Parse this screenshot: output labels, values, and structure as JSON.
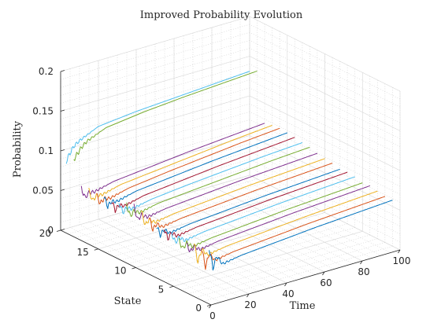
{
  "chart_data": {
    "type": "line3d",
    "title": "Improved Probability Evolution",
    "xlabel": "Time",
    "ylabel": "State",
    "zlabel": "Probability",
    "xlim": [
      0,
      100
    ],
    "ylim": [
      0,
      20
    ],
    "zlim": [
      0,
      0.2
    ],
    "xticks": [
      "0",
      "20",
      "40",
      "60",
      "80",
      "100"
    ],
    "yticks": [
      "0",
      "5",
      "10",
      "15",
      "20"
    ],
    "zticks": [
      "0",
      "0.05",
      "0.1",
      "0.15",
      "0.2"
    ],
    "grid": true,
    "colors": [
      "#0072BD",
      "#D95319",
      "#EDB120",
      "#7E2F8E",
      "#77AC30",
      "#4DBEEE",
      "#A2142F"
    ],
    "series": [
      {
        "state": 1,
        "x": [
          3,
          5,
          7,
          10,
          20,
          40,
          60,
          80,
          100
        ],
        "values": [
          0.065,
          0.038,
          0.052,
          0.04,
          0.044,
          0.048,
          0.052,
          0.055,
          0.058
        ]
      },
      {
        "state": 2,
        "x": [
          3,
          5,
          7,
          10,
          20,
          40,
          60,
          80,
          100
        ],
        "values": [
          0.06,
          0.035,
          0.05,
          0.04,
          0.044,
          0.048,
          0.052,
          0.055,
          0.058
        ]
      },
      {
        "state": 3,
        "x": [
          3,
          5,
          7,
          10,
          20,
          40,
          60,
          80,
          100
        ],
        "values": [
          0.062,
          0.036,
          0.051,
          0.042,
          0.046,
          0.05,
          0.054,
          0.057,
          0.06
        ]
      },
      {
        "state": 4,
        "x": [
          3,
          5,
          7,
          10,
          20,
          40,
          60,
          80,
          100
        ],
        "values": [
          0.055,
          0.045,
          0.05,
          0.044,
          0.048,
          0.052,
          0.056,
          0.059,
          0.062
        ]
      },
      {
        "state": 5,
        "x": [
          3,
          5,
          7,
          10,
          20,
          40,
          60,
          80,
          100
        ],
        "values": [
          0.055,
          0.044,
          0.05,
          0.043,
          0.047,
          0.051,
          0.055,
          0.058,
          0.061
        ]
      },
      {
        "state": 6,
        "x": [
          3,
          5,
          7,
          10,
          20,
          40,
          60,
          80,
          100
        ],
        "values": [
          0.06,
          0.047,
          0.052,
          0.046,
          0.05,
          0.054,
          0.058,
          0.061,
          0.064
        ]
      },
      {
        "state": 7,
        "x": [
          3,
          5,
          7,
          10,
          20,
          40,
          60,
          80,
          100
        ],
        "values": [
          0.062,
          0.047,
          0.053,
          0.047,
          0.051,
          0.055,
          0.059,
          0.062,
          0.065
        ]
      },
      {
        "state": 8,
        "x": [
          3,
          5,
          7,
          10,
          20,
          40,
          60,
          80,
          100
        ],
        "values": [
          0.06,
          0.047,
          0.052,
          0.046,
          0.05,
          0.054,
          0.058,
          0.061,
          0.064
        ]
      },
      {
        "state": 9,
        "x": [
          3,
          5,
          7,
          10,
          20,
          40,
          60,
          80,
          100
        ],
        "values": [
          0.066,
          0.049,
          0.055,
          0.049,
          0.053,
          0.057,
          0.061,
          0.064,
          0.067
        ]
      },
      {
        "state": 10,
        "x": [
          3,
          5,
          7,
          10,
          20,
          40,
          60,
          80,
          100
        ],
        "values": [
          0.068,
          0.05,
          0.056,
          0.05,
          0.054,
          0.058,
          0.062,
          0.065,
          0.068
        ]
      },
      {
        "state": 11,
        "x": [
          3,
          5,
          7,
          10,
          20,
          40,
          60,
          80,
          100
        ],
        "values": [
          0.07,
          0.052,
          0.057,
          0.052,
          0.056,
          0.06,
          0.064,
          0.067,
          0.07
        ]
      },
      {
        "state": 12,
        "x": [
          3,
          5,
          7,
          10,
          20,
          40,
          60,
          80,
          100
        ],
        "values": [
          0.068,
          0.052,
          0.057,
          0.053,
          0.058,
          0.062,
          0.066,
          0.07,
          0.073
        ]
      },
      {
        "state": 13,
        "x": [
          3,
          5,
          7,
          10,
          20,
          40,
          60,
          80,
          100
        ],
        "values": [
          0.066,
          0.052,
          0.056,
          0.053,
          0.058,
          0.063,
          0.067,
          0.071,
          0.074
        ]
      },
      {
        "state": 14,
        "x": [
          3,
          5,
          7,
          10,
          20,
          40,
          60,
          80,
          100
        ],
        "values": [
          0.064,
          0.05,
          0.055,
          0.052,
          0.058,
          0.063,
          0.068,
          0.072,
          0.076
        ]
      },
      {
        "state": 15,
        "x": [
          3,
          5,
          7,
          10,
          20,
          40,
          60,
          80,
          100
        ],
        "values": [
          0.064,
          0.05,
          0.055,
          0.053,
          0.059,
          0.064,
          0.069,
          0.073,
          0.077
        ]
      },
      {
        "state": 16,
        "x": [
          3,
          5,
          7,
          10,
          20,
          40,
          60,
          80,
          100
        ],
        "values": [
          0.062,
          0.049,
          0.054,
          0.052,
          0.058,
          0.064,
          0.069,
          0.074,
          0.078
        ]
      },
      {
        "state": 17,
        "x": [
          3,
          5,
          7,
          10,
          20,
          40,
          60,
          80,
          100
        ],
        "values": [
          0.062,
          0.048,
          0.053,
          0.052,
          0.058,
          0.063,
          0.068,
          0.073,
          0.077
        ]
      },
      {
        "state": 18,
        "x": [
          3,
          5,
          7,
          10,
          20,
          40,
          60,
          80,
          100
        ],
        "values": [
          0.06,
          0.047,
          0.052,
          0.051,
          0.057,
          0.062,
          0.067,
          0.071,
          0.075
        ]
      },
      {
        "state": 19,
        "x": [
          3,
          5,
          7,
          10,
          20,
          40,
          60,
          80,
          100
        ],
        "values": [
          0.092,
          0.098,
          0.104,
          0.11,
          0.12,
          0.126,
          0.13,
          0.133,
          0.136
        ]
      },
      {
        "state": 20,
        "x": [
          3,
          5,
          7,
          10,
          20,
          40,
          60,
          80,
          100
        ],
        "values": [
          0.085,
          0.094,
          0.101,
          0.106,
          0.117,
          0.122,
          0.125,
          0.128,
          0.131
        ]
      }
    ]
  }
}
